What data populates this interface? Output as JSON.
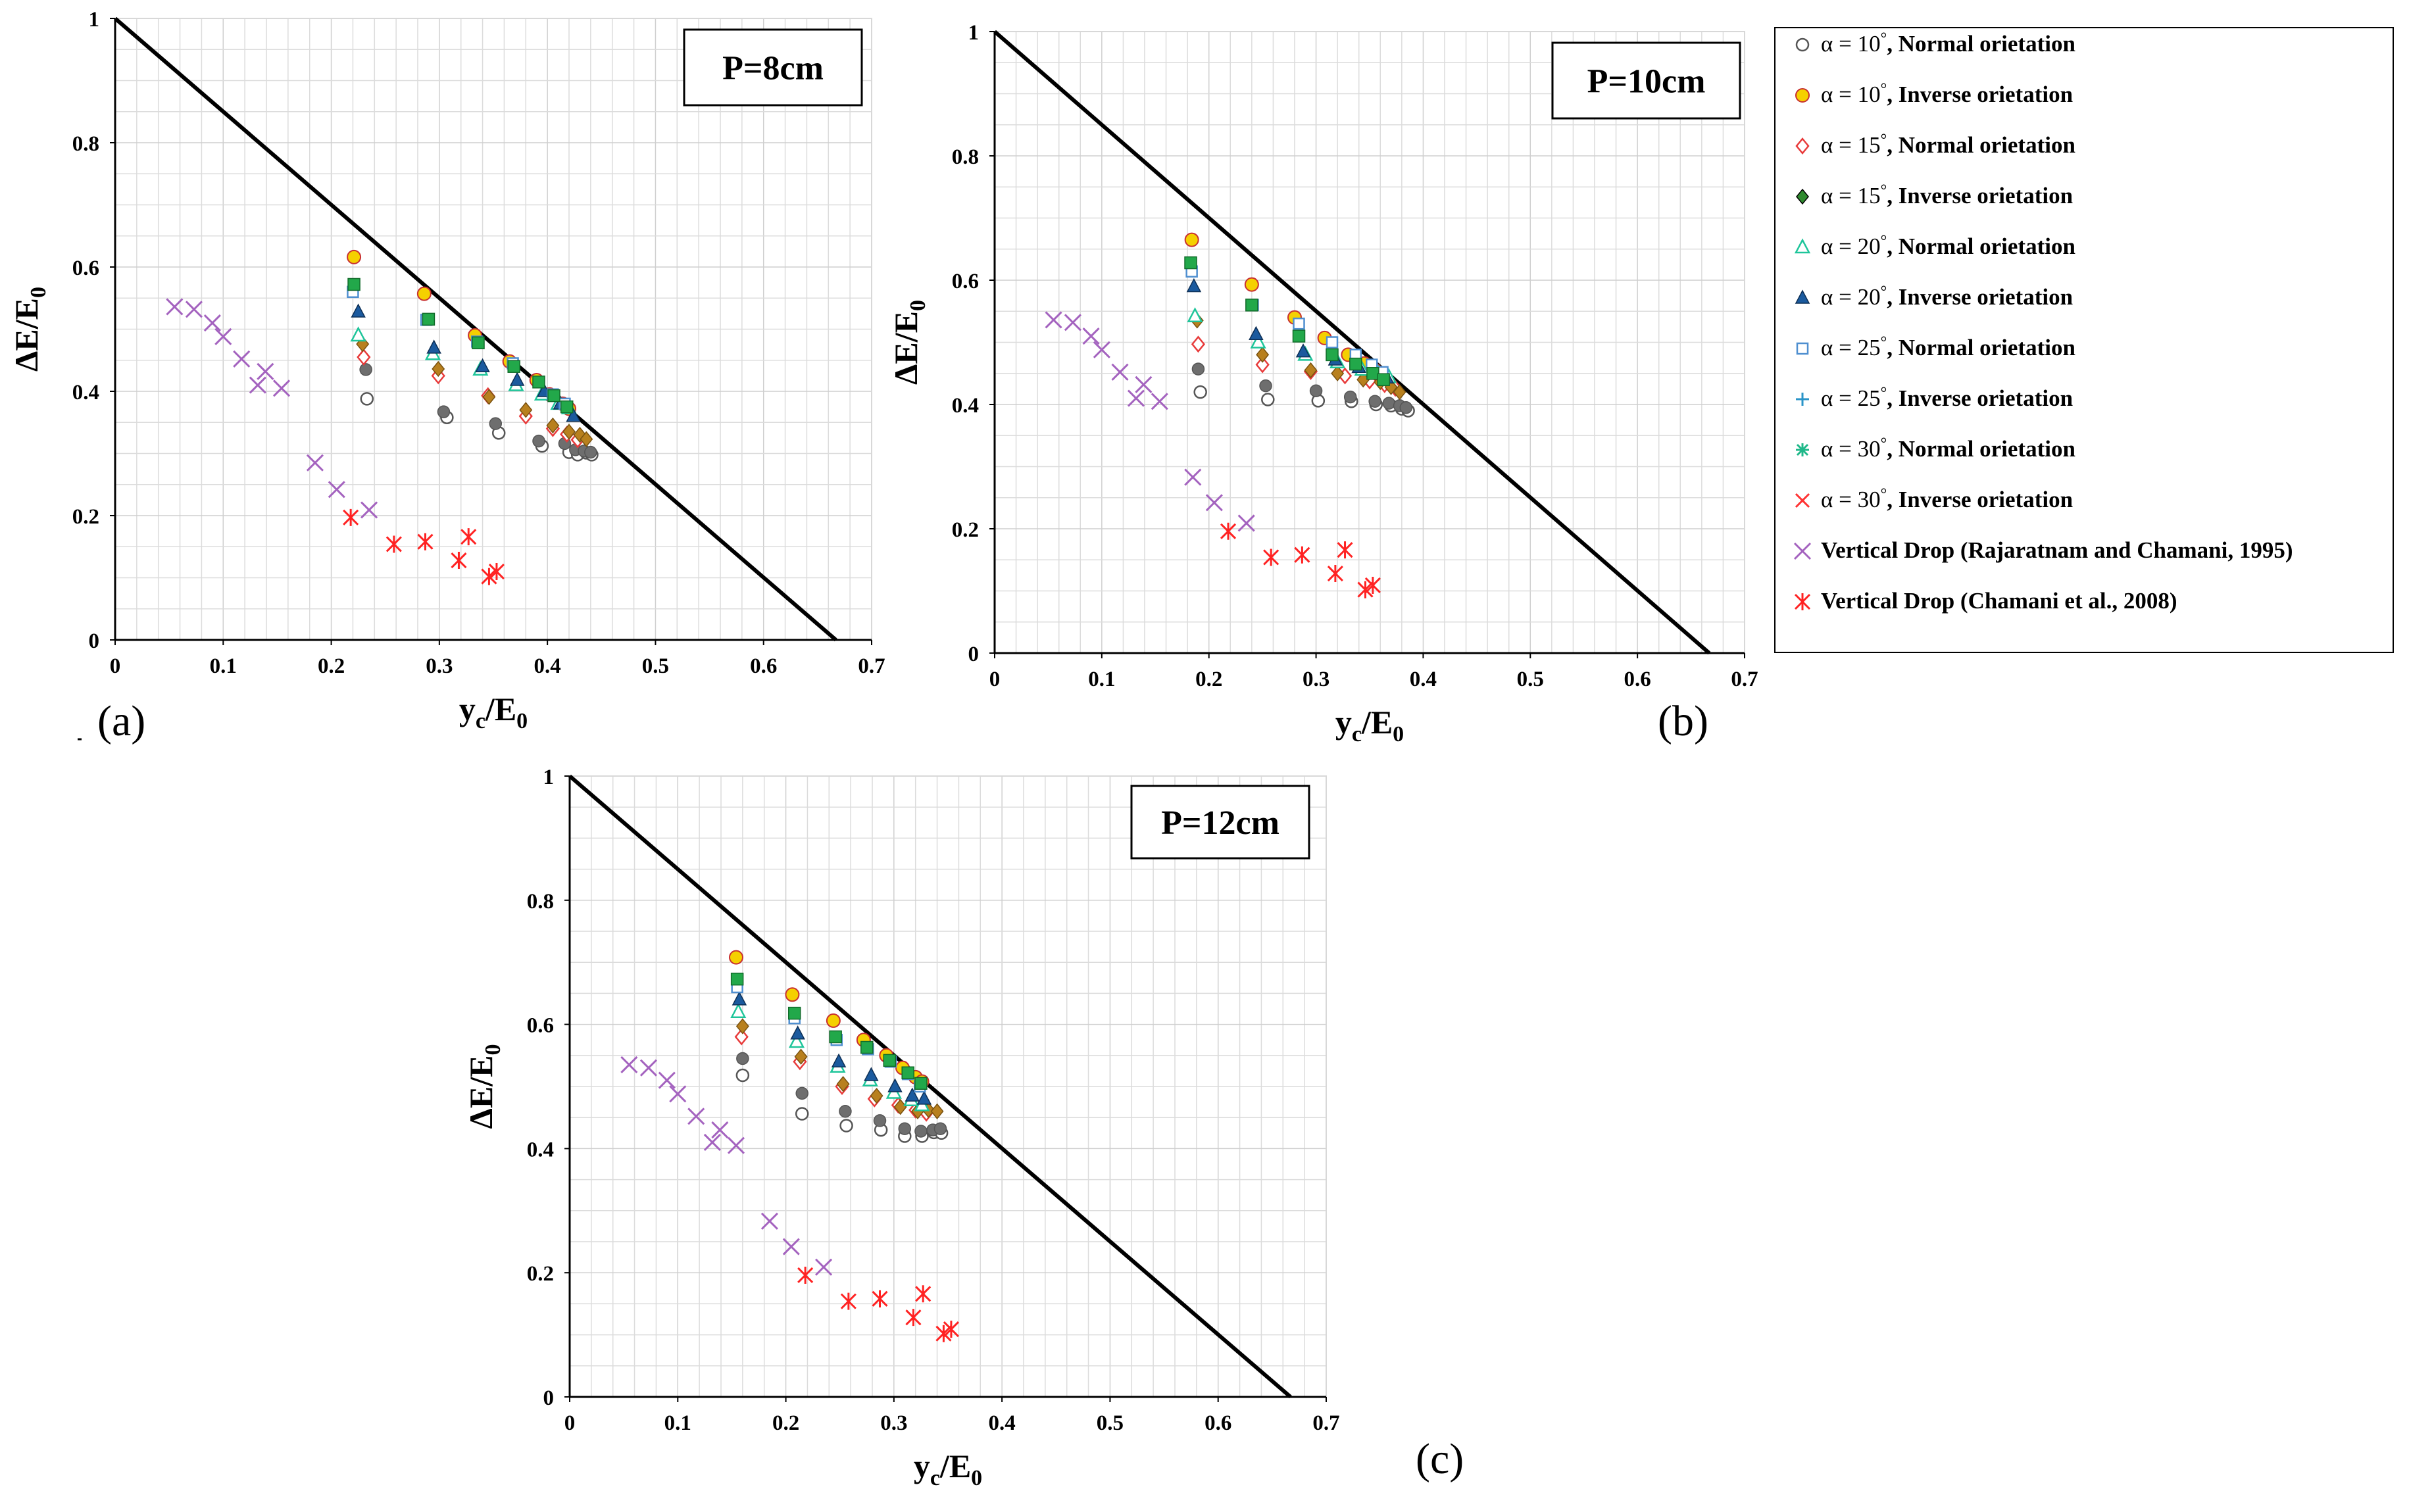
{
  "figure": {
    "colors": {
      "grid": "#dcdcdc",
      "line": "#000000",
      "circle_normal": "#555555",
      "circle_inverse_fill": "#f5d000",
      "diamond_normal": "#e83a3a",
      "diamond_inverse_fill": "#2f8a2f",
      "triangle_normal": "#1ec59a",
      "triangle_inverse_fill": "#1b5a9e",
      "square_normal": "#4f8fd0",
      "plus": "#2a94c8",
      "asterisk": "#1fb889",
      "cross_30": "#ff3333",
      "cross_vertical": "#a463bf",
      "star_vertical": "#ff2222"
    },
    "legend": {
      "items": [
        {
          "alpha": "10",
          "label": " Normal orietation",
          "marker": "circle-open",
          "color": "#555555"
        },
        {
          "alpha": "10",
          "label": " Inverse orietation",
          "marker": "circle-filled",
          "color": "#c8d400"
        },
        {
          "alpha": "15",
          "label": " Normal orietation",
          "marker": "diamond-open",
          "color": "#e83a3a"
        },
        {
          "alpha": "15",
          "label": " Inverse orietation",
          "marker": "diamond-filled",
          "color": "#2f8a2f"
        },
        {
          "alpha": "20",
          "label": " Normal orietation",
          "marker": "triangle-open",
          "color": "#1ec59a"
        },
        {
          "alpha": "20",
          "label": " Inverse orietation",
          "marker": "triangle-filled",
          "color": "#1b5a9e"
        },
        {
          "alpha": "25",
          "label": " Normal orietation",
          "marker": "square-open",
          "color": "#4f8fd0"
        },
        {
          "alpha": "25",
          "label": " Inverse orietation",
          "marker": "plus",
          "color": "#2a94c8"
        },
        {
          "alpha": "30",
          "label": " Normal orietation",
          "marker": "asterisk",
          "color": "#1fb889"
        },
        {
          "alpha": "30",
          "label": " Inverse orietation",
          "marker": "cross",
          "color": "#ff3333"
        },
        {
          "alpha": "",
          "label": "Vertical Drop (Rajaratnam and Chamani, 1995)",
          "marker": "cross",
          "color": "#a463bf"
        },
        {
          "alpha": "",
          "label": "Vertical Drop (Chamani et al., 2008)",
          "marker": "star",
          "color": "#ff2222"
        }
      ],
      "alpha_symbol": "α",
      "degree_symbol": "°"
    }
  },
  "chart_data": [
    {
      "type": "scatter",
      "panel_label": "(a)",
      "title": "P=8cm",
      "xlabel": "yc/E0",
      "ylabel": "ΔE/E0",
      "xlim": [
        0,
        0.7
      ],
      "ylim": [
        0,
        1
      ],
      "xticks": [
        "0",
        "0.1",
        "0.2",
        "0.3",
        "0.4",
        "0.5",
        "0.6",
        "0.7"
      ],
      "yticks": [
        "0",
        "0.2",
        "0.4",
        "0.6",
        "0.8",
        "1"
      ],
      "reference_line": {
        "x": [
          0,
          0.667
        ],
        "y": [
          1,
          0
        ]
      },
      "series": [
        {
          "name": "α=10° Normal",
          "marker": "circle-open",
          "x": [
            0.233,
            0.307,
            0.355,
            0.395,
            0.42,
            0.428,
            0.436,
            0.441
          ],
          "y": [
            0.388,
            0.358,
            0.333,
            0.312,
            0.302,
            0.298,
            0.301,
            0.298
          ]
        },
        {
          "name": "α=10° Normal (grey)",
          "marker": "circle-grey",
          "x": [
            0.232,
            0.304,
            0.352,
            0.392,
            0.416,
            0.426,
            0.434,
            0.44
          ],
          "y": [
            0.435,
            0.367,
            0.348,
            0.32,
            0.316,
            0.306,
            0.304,
            0.302
          ]
        },
        {
          "name": "α=10° Inverse",
          "marker": "circle-filled",
          "x": [
            0.221,
            0.286,
            0.333,
            0.365,
            0.39,
            0.402,
            0.414,
            0.42
          ],
          "y": [
            0.616,
            0.557,
            0.49,
            0.448,
            0.418,
            0.395,
            0.38,
            0.372
          ]
        },
        {
          "name": "α=15° Normal",
          "marker": "diamond-open",
          "x": [
            0.23,
            0.299,
            0.345,
            0.38,
            0.405,
            0.418,
            0.428
          ],
          "y": [
            0.455,
            0.425,
            0.393,
            0.36,
            0.34,
            0.331,
            0.322
          ]
        },
        {
          "name": "α=15° Inverse",
          "marker": "diamond-gold",
          "x": [
            0.229,
            0.299,
            0.346,
            0.38,
            0.405,
            0.42,
            0.43,
            0.436
          ],
          "y": [
            0.476,
            0.436,
            0.391,
            0.37,
            0.345,
            0.335,
            0.33,
            0.323
          ]
        },
        {
          "name": "α=20° Normal",
          "marker": "triangle-open",
          "x": [
            0.225,
            0.294,
            0.338,
            0.371,
            0.395,
            0.41,
            0.42
          ],
          "y": [
            0.49,
            0.46,
            0.435,
            0.41,
            0.395,
            0.38,
            0.373
          ]
        },
        {
          "name": "α=20° Inverse",
          "marker": "triangle-filled",
          "x": [
            0.225,
            0.295,
            0.34,
            0.372,
            0.397,
            0.412,
            0.424
          ],
          "y": [
            0.528,
            0.47,
            0.44,
            0.418,
            0.4,
            0.38,
            0.36
          ]
        },
        {
          "name": "α=25° Normal",
          "marker": "square-open",
          "x": [
            0.22,
            0.288,
            0.335,
            0.368,
            0.392,
            0.405,
            0.416
          ],
          "y": [
            0.56,
            0.515,
            0.48,
            0.445,
            0.415,
            0.395,
            0.38
          ]
        },
        {
          "name": "α=25° Inverse (green)",
          "marker": "square-filled",
          "x": [
            0.221,
            0.29,
            0.336,
            0.369,
            0.392,
            0.406,
            0.418
          ],
          "y": [
            0.572,
            0.516,
            0.478,
            0.44,
            0.415,
            0.393,
            0.375
          ]
        },
        {
          "name": "Vertical Drop (Rajaratnam and Chamani, 1995)",
          "marker": "cross-purple",
          "x": [
            0.055,
            0.073,
            0.09,
            0.1,
            0.117,
            0.132,
            0.139,
            0.154,
            0.185,
            0.205,
            0.235
          ],
          "y": [
            0.536,
            0.532,
            0.51,
            0.488,
            0.452,
            0.41,
            0.432,
            0.405,
            0.285,
            0.242,
            0.209
          ]
        },
        {
          "name": "Vertical Drop (Chamani et al., 2008)",
          "marker": "star-red",
          "x": [
            0.218,
            0.258,
            0.287,
            0.318,
            0.327,
            0.346,
            0.353
          ],
          "y": [
            0.197,
            0.154,
            0.158,
            0.128,
            0.166,
            0.102,
            0.11
          ]
        }
      ]
    },
    {
      "type": "scatter",
      "panel_label": "(b)",
      "title": "P=10cm",
      "xlabel": "yc/E0",
      "ylabel": "ΔE/E0",
      "xlim": [
        0,
        0.7
      ],
      "ylim": [
        0,
        1
      ],
      "xticks": [
        "0",
        "0.1",
        "0.2",
        "0.3",
        "0.4",
        "0.5",
        "0.6",
        "0.7"
      ],
      "yticks": [
        "0",
        "0.2",
        "0.4",
        "0.6",
        "0.8",
        "1"
      ],
      "reference_line": {
        "x": [
          0,
          0.667
        ],
        "y": [
          1,
          0
        ]
      },
      "series": [
        {
          "name": "α=10° Normal",
          "marker": "circle-open",
          "x": [
            0.192,
            0.255,
            0.302,
            0.333,
            0.356,
            0.37,
            0.38,
            0.386
          ],
          "y": [
            0.42,
            0.408,
            0.406,
            0.405,
            0.4,
            0.398,
            0.393,
            0.39
          ]
        },
        {
          "name": "α=10° Normal (grey)",
          "marker": "circle-grey",
          "x": [
            0.19,
            0.253,
            0.3,
            0.332,
            0.355,
            0.368,
            0.378,
            0.384
          ],
          "y": [
            0.457,
            0.43,
            0.422,
            0.412,
            0.405,
            0.402,
            0.398,
            0.395
          ]
        },
        {
          "name": "α=10° Inverse",
          "marker": "circle-filled",
          "x": [
            0.184,
            0.24,
            0.28,
            0.308,
            0.33,
            0.345,
            0.355,
            0.362
          ],
          "y": [
            0.665,
            0.593,
            0.54,
            0.507,
            0.48,
            0.466,
            0.455,
            0.448
          ]
        },
        {
          "name": "α=15° Normal",
          "marker": "diamond-open",
          "x": [
            0.19,
            0.25,
            0.295,
            0.327,
            0.35,
            0.364,
            0.374
          ],
          "y": [
            0.497,
            0.464,
            0.453,
            0.446,
            0.438,
            0.432,
            0.426
          ]
        },
        {
          "name": "α=15° Inverse",
          "marker": "diamond-gold",
          "x": [
            0.189,
            0.25,
            0.295,
            0.32,
            0.344,
            0.36,
            0.37,
            0.378
          ],
          "y": [
            0.535,
            0.48,
            0.455,
            0.45,
            0.44,
            0.436,
            0.428,
            0.42
          ]
        },
        {
          "name": "α=20° Normal",
          "marker": "triangle-open",
          "x": [
            0.187,
            0.246,
            0.29,
            0.32,
            0.343,
            0.358,
            0.368
          ],
          "y": [
            0.542,
            0.5,
            0.48,
            0.468,
            0.456,
            0.45,
            0.444
          ]
        },
        {
          "name": "α=20° Inverse",
          "marker": "triangle-filled",
          "x": [
            0.186,
            0.244,
            0.288,
            0.318,
            0.34,
            0.356,
            0.366
          ],
          "y": [
            0.59,
            0.513,
            0.485,
            0.472,
            0.46,
            0.452,
            0.443
          ]
        },
        {
          "name": "α=25° Normal",
          "marker": "square-open",
          "x": [
            0.184,
            0.241,
            0.284,
            0.315,
            0.337,
            0.352,
            0.362
          ],
          "y": [
            0.614,
            0.56,
            0.53,
            0.5,
            0.48,
            0.464,
            0.452
          ]
        },
        {
          "name": "α=25° Inverse (green)",
          "marker": "square-filled",
          "x": [
            0.183,
            0.24,
            0.284,
            0.315,
            0.337,
            0.353,
            0.363
          ],
          "y": [
            0.628,
            0.56,
            0.51,
            0.48,
            0.465,
            0.45,
            0.44
          ]
        },
        {
          "name": "Vertical Drop (Rajaratnam and Chamani, 1995)",
          "marker": "cross-purple",
          "x": [
            0.055,
            0.073,
            0.09,
            0.1,
            0.117,
            0.132,
            0.139,
            0.154,
            0.185,
            0.205,
            0.235
          ],
          "y": [
            0.536,
            0.532,
            0.51,
            0.488,
            0.452,
            0.41,
            0.432,
            0.405,
            0.283,
            0.242,
            0.209
          ]
        },
        {
          "name": "Vertical Drop (Chamani et al., 2008)",
          "marker": "star-red",
          "x": [
            0.218,
            0.258,
            0.287,
            0.318,
            0.327,
            0.346,
            0.353
          ],
          "y": [
            0.196,
            0.154,
            0.158,
            0.128,
            0.166,
            0.102,
            0.109
          ]
        }
      ]
    },
    {
      "type": "scatter",
      "panel_label": "(c)",
      "title": "P=12cm",
      "xlabel": "yc/E0",
      "ylabel": "ΔE/E0",
      "xlim": [
        0,
        0.7
      ],
      "ylim": [
        0,
        1
      ],
      "xticks": [
        "0",
        "0.1",
        "0.2",
        "0.3",
        "0.4",
        "0.5",
        "0.6",
        "0.7"
      ],
      "yticks": [
        "0",
        "0.2",
        "0.4",
        "0.6",
        "0.8",
        "1"
      ],
      "reference_line": {
        "x": [
          0,
          0.667
        ],
        "y": [
          1,
          0
        ]
      },
      "series": [
        {
          "name": "α=10° Normal",
          "marker": "circle-open",
          "x": [
            0.16,
            0.215,
            0.256,
            0.288,
            0.31,
            0.326,
            0.337,
            0.344
          ],
          "y": [
            0.518,
            0.456,
            0.437,
            0.43,
            0.42,
            0.42,
            0.426,
            0.425
          ]
        },
        {
          "name": "α=10° Normal (grey)",
          "marker": "circle-grey",
          "x": [
            0.16,
            0.215,
            0.255,
            0.287,
            0.31,
            0.325,
            0.336,
            0.343
          ],
          "y": [
            0.545,
            0.489,
            0.46,
            0.445,
            0.432,
            0.428,
            0.43,
            0.432
          ]
        },
        {
          "name": "α=10° Inverse",
          "marker": "circle-filled",
          "x": [
            0.154,
            0.206,
            0.244,
            0.272,
            0.293,
            0.308,
            0.32,
            0.326
          ],
          "y": [
            0.708,
            0.648,
            0.606,
            0.575,
            0.55,
            0.53,
            0.515,
            0.508
          ]
        },
        {
          "name": "α=15° Normal",
          "marker": "diamond-open",
          "x": [
            0.159,
            0.213,
            0.252,
            0.282,
            0.304,
            0.32,
            0.33
          ],
          "y": [
            0.58,
            0.54,
            0.5,
            0.48,
            0.47,
            0.462,
            0.457
          ]
        },
        {
          "name": "α=15° Inverse",
          "marker": "diamond-gold",
          "x": [
            0.16,
            0.214,
            0.253,
            0.284,
            0.306,
            0.322,
            0.332,
            0.34
          ],
          "y": [
            0.597,
            0.548,
            0.504,
            0.485,
            0.467,
            0.46,
            0.462,
            0.46
          ]
        },
        {
          "name": "α=20° Normal",
          "marker": "triangle-open",
          "x": [
            0.156,
            0.21,
            0.248,
            0.278,
            0.3,
            0.316,
            0.326
          ],
          "y": [
            0.62,
            0.572,
            0.532,
            0.51,
            0.49,
            0.478,
            0.47
          ]
        },
        {
          "name": "α=20° Inverse",
          "marker": "triangle-filled",
          "x": [
            0.157,
            0.211,
            0.249,
            0.279,
            0.301,
            0.317,
            0.328
          ],
          "y": [
            0.64,
            0.585,
            0.54,
            0.518,
            0.5,
            0.485,
            0.48
          ]
        },
        {
          "name": "α=25° Normal",
          "marker": "square-open",
          "x": [
            0.155,
            0.208,
            0.247,
            0.276,
            0.297,
            0.313,
            0.324
          ],
          "y": [
            0.66,
            0.61,
            0.575,
            0.56,
            0.54,
            0.52,
            0.5
          ]
        },
        {
          "name": "α=25° Inverse (green)",
          "marker": "square-filled",
          "x": [
            0.155,
            0.208,
            0.246,
            0.275,
            0.296,
            0.313,
            0.325
          ],
          "y": [
            0.673,
            0.618,
            0.58,
            0.563,
            0.542,
            0.522,
            0.505
          ]
        },
        {
          "name": "Vertical Drop (Rajaratnam and Chamani, 1995)",
          "marker": "cross-purple",
          "x": [
            0.055,
            0.073,
            0.09,
            0.1,
            0.117,
            0.132,
            0.139,
            0.154,
            0.185,
            0.205,
            0.235
          ],
          "y": [
            0.535,
            0.53,
            0.51,
            0.488,
            0.452,
            0.41,
            0.43,
            0.405,
            0.283,
            0.242,
            0.209
          ]
        },
        {
          "name": "Vertical Drop (Chamani et al., 2008)",
          "marker": "star-red",
          "x": [
            0.218,
            0.258,
            0.287,
            0.318,
            0.327,
            0.346,
            0.353
          ],
          "y": [
            0.196,
            0.154,
            0.158,
            0.128,
            0.166,
            0.102,
            0.109
          ]
        }
      ]
    }
  ]
}
